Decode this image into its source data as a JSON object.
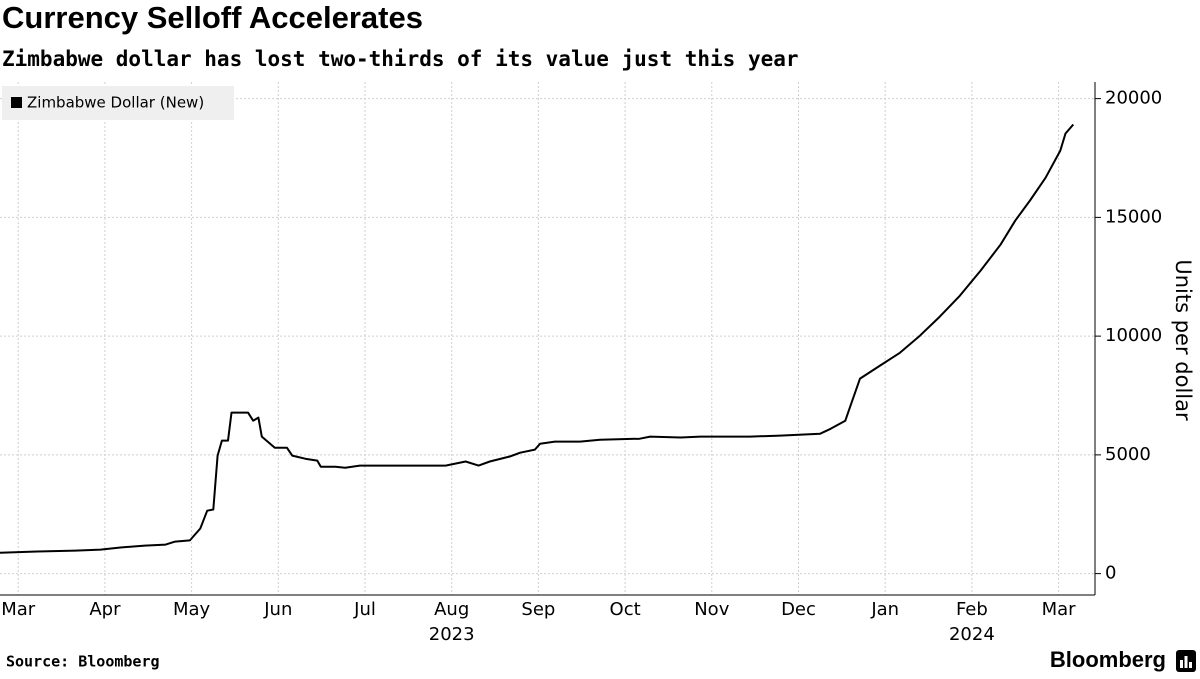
{
  "chart_data": {
    "type": "line",
    "title": "Currency Selloff Accelerates",
    "subtitle": "Zimbabwe dollar has lost two-thirds of its value just this year",
    "y_axis_label": "Units per dollar",
    "source": "Source: Bloomberg",
    "brand": "Bloomberg",
    "x": [
      -0.21,
      0.22,
      0.66,
      0.95,
      1.18,
      1.46,
      1.7,
      1.81,
      1.98,
      2.1,
      2.18,
      2.25,
      2.3,
      2.35,
      2.42,
      2.46,
      2.65,
      2.71,
      2.77,
      2.81,
      2.96,
      3.1,
      3.16,
      3.31,
      3.45,
      3.49,
      3.66,
      3.77,
      3.94,
      4.64,
      4.93,
      5.16,
      5.31,
      5.44,
      5.67,
      5.79,
      5.96,
      6.02,
      6.19,
      6.48,
      6.71,
      7.17,
      7.29,
      7.64,
      7.87,
      8.44,
      8.79,
      9.25,
      9.37,
      9.54,
      9.6,
      9.71,
      9.94,
      10.17,
      10.4,
      10.63,
      10.86,
      11.1,
      11.33,
      11.5,
      11.67,
      11.85,
      12.02,
      12.08,
      12.17
    ],
    "series": [
      {
        "name": "Zimbabwe Dollar (New)",
        "color": "#000000",
        "values": [
          880,
          930,
          970,
          1010,
          1100,
          1180,
          1220,
          1350,
          1400,
          1900,
          2650,
          2700,
          4970,
          5600,
          5600,
          6780,
          6780,
          6440,
          6570,
          5770,
          5300,
          5300,
          4970,
          4840,
          4760,
          4500,
          4500,
          4460,
          4550,
          4550,
          4550,
          4720,
          4550,
          4720,
          4930,
          5090,
          5220,
          5470,
          5560,
          5560,
          5640,
          5680,
          5770,
          5730,
          5770,
          5770,
          5810,
          5890,
          6100,
          6440,
          7070,
          8210,
          8760,
          9300,
          10020,
          10820,
          11700,
          12760,
          13850,
          14860,
          15710,
          16670,
          17810,
          18530,
          18910
        ]
      }
    ],
    "xlim": [
      -0.21,
      12.42
    ],
    "xticks": [
      {
        "value": 0,
        "label": "Mar"
      },
      {
        "value": 1,
        "label": "Apr"
      },
      {
        "value": 2,
        "label": "May"
      },
      {
        "value": 3,
        "label": "Jun"
      },
      {
        "value": 4,
        "label": "Jul"
      },
      {
        "value": 5,
        "label": "Aug"
      },
      {
        "value": 6,
        "label": "Sep"
      },
      {
        "value": 7,
        "label": "Oct"
      },
      {
        "value": 8,
        "label": "Nov"
      },
      {
        "value": 9,
        "label": "Dec"
      },
      {
        "value": 10,
        "label": "Jan"
      },
      {
        "value": 11,
        "label": "Feb"
      },
      {
        "value": 12,
        "label": "Mar"
      }
    ],
    "year_labels": [
      {
        "value": 5,
        "label": "2023"
      },
      {
        "value": 11,
        "label": "2024"
      }
    ],
    "ylim": [
      -900,
      20700
    ],
    "yticks": [
      0,
      5000,
      10000,
      15000,
      20000
    ],
    "grid": true,
    "legend": "top-left"
  }
}
